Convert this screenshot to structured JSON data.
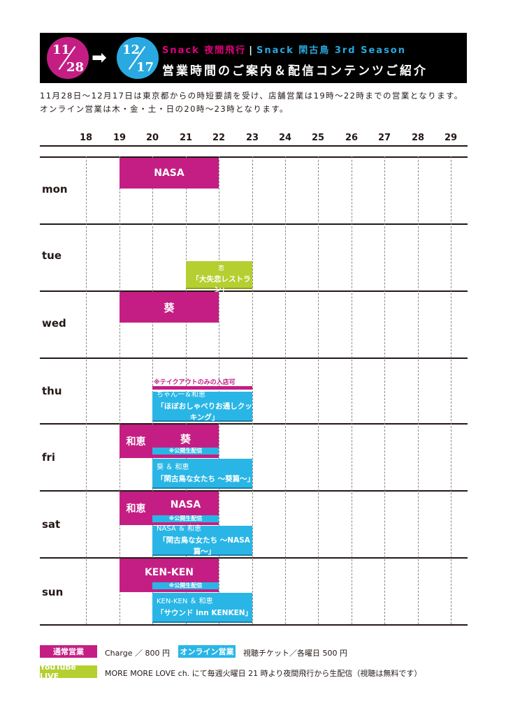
{
  "header": {
    "date_from_top": "11",
    "date_from_bottom": "28",
    "date_to_top": "12",
    "date_to_bottom": "17",
    "arrow": "➡",
    "title_left": "Snack 夜間飛行",
    "title_sep": "|",
    "title_right": "Snack 閑古鳥 3rd Season",
    "subtitle": "営業時間のご案内＆配信コンテンツご紹介"
  },
  "intro": "11月28日〜12月17日は東京都からの時短要請を受け、店舗営業は19時〜22時までの営業となります。オンライン営業は木・金・土・日の20時〜23時となります。",
  "hours": [
    "18",
    "19",
    "20",
    "21",
    "22",
    "23",
    "24",
    "25",
    "26",
    "27",
    "28",
    "29"
  ],
  "days": [
    "mon",
    "tue",
    "wed",
    "thu",
    "fri",
    "sat",
    "sun"
  ],
  "schedule": {
    "mon": {
      "store": "NASA"
    },
    "tue": {
      "youtube_line1": "ギャランティーク和恵",
      "youtube_line2": "「大失恋レストラン」"
    },
    "wed": {
      "store": "葵"
    },
    "thu": {
      "note": "※テイクアウトのみの入店可",
      "online_line1": "ちゃん一＆和恵",
      "online_line2": "「ほぼおしゃべりお通しクッキング」"
    },
    "fri": {
      "store_early": "和恵",
      "store": "葵",
      "live_tag": "※公開生配信",
      "online_line1": "葵 ＆ 和恵",
      "online_line2": "「閑古鳥な女たち 〜葵篇〜」"
    },
    "sat": {
      "store_early": "和恵",
      "store": "NASA",
      "live_tag": "※公開生配信",
      "online_line1": "NASA ＆ 和恵",
      "online_line2": "「閑古鳥な女たち 〜NASA 篇〜」"
    },
    "sun": {
      "store": "KEN-KEN",
      "live_tag": "※公開生配信",
      "online_line1": "KEN-KEN ＆ 和恵",
      "online_line2": "「サウンド inn KENKEN」"
    }
  },
  "legend": {
    "regular_label": "通常営業",
    "regular_text": "Charge ／ 800 円",
    "online_label": "オンライン営業",
    "online_text": "視聴チケット／各曜日 500 円",
    "youtube_label": "YouTube LIVE",
    "youtube_text": "MORE MORE LOVE ch. にて毎週火曜日 21 時より夜間飛行から生配信（視聴は無料です）"
  },
  "colors": {
    "pink": "#c41e84",
    "blue": "#29b6e6",
    "green": "#b5cf30",
    "black": "#000000"
  }
}
